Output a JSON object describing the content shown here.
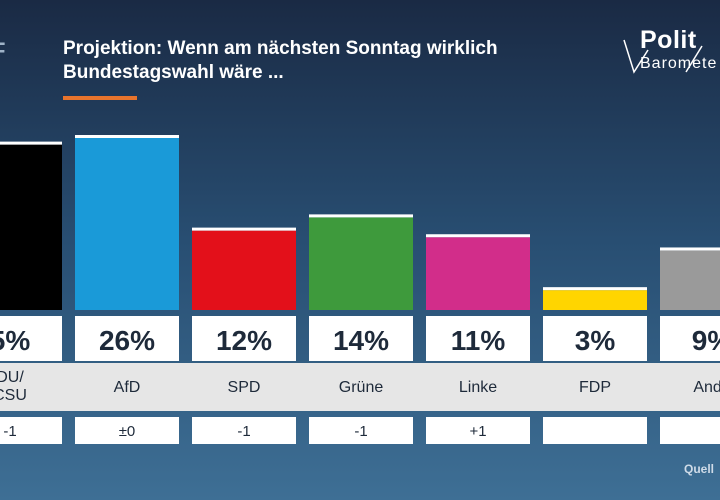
{
  "header": {
    "logo_left": "F",
    "title_line1": "Projektion: Wenn am nächsten Sonntag wirklich",
    "title_line2": "Bundestagswahl wäre ...",
    "brand_top": "Polit",
    "brand_bottom": "Baromete",
    "accent_color": "#e8742c"
  },
  "footer": {
    "source": "Quell"
  },
  "chart_data": {
    "type": "bar",
    "title": "Projektion: Wenn am nächsten Sonntag wirklich Bundestagswahl wäre ...",
    "categories": [
      "CDU/CSU",
      "AfD",
      "SPD",
      "Grüne",
      "Linke",
      "FDP",
      "Andere"
    ],
    "category_labels_visible": [
      [
        "DU/",
        "CSU"
      ],
      [
        "AfD"
      ],
      [
        "SPD"
      ],
      [
        "Grüne"
      ],
      [
        "Linke"
      ],
      [
        "FDP"
      ],
      [
        "Ande"
      ]
    ],
    "values": [
      25,
      26,
      12,
      14,
      11,
      3,
      9
    ],
    "value_labels_visible": [
      "5%",
      "26%",
      "12%",
      "14%",
      "11%",
      "3%",
      "9%"
    ],
    "change_labels": [
      "-1",
      "±0",
      "-1",
      "-1",
      "+1",
      "",
      ""
    ],
    "colors": [
      "#000000",
      "#1a9ad8",
      "#e3101a",
      "#3e9a3c",
      "#d22d8a",
      "#ffd500",
      "#9a9a9a"
    ],
    "unit": "%",
    "ylim": [
      0,
      26
    ]
  }
}
